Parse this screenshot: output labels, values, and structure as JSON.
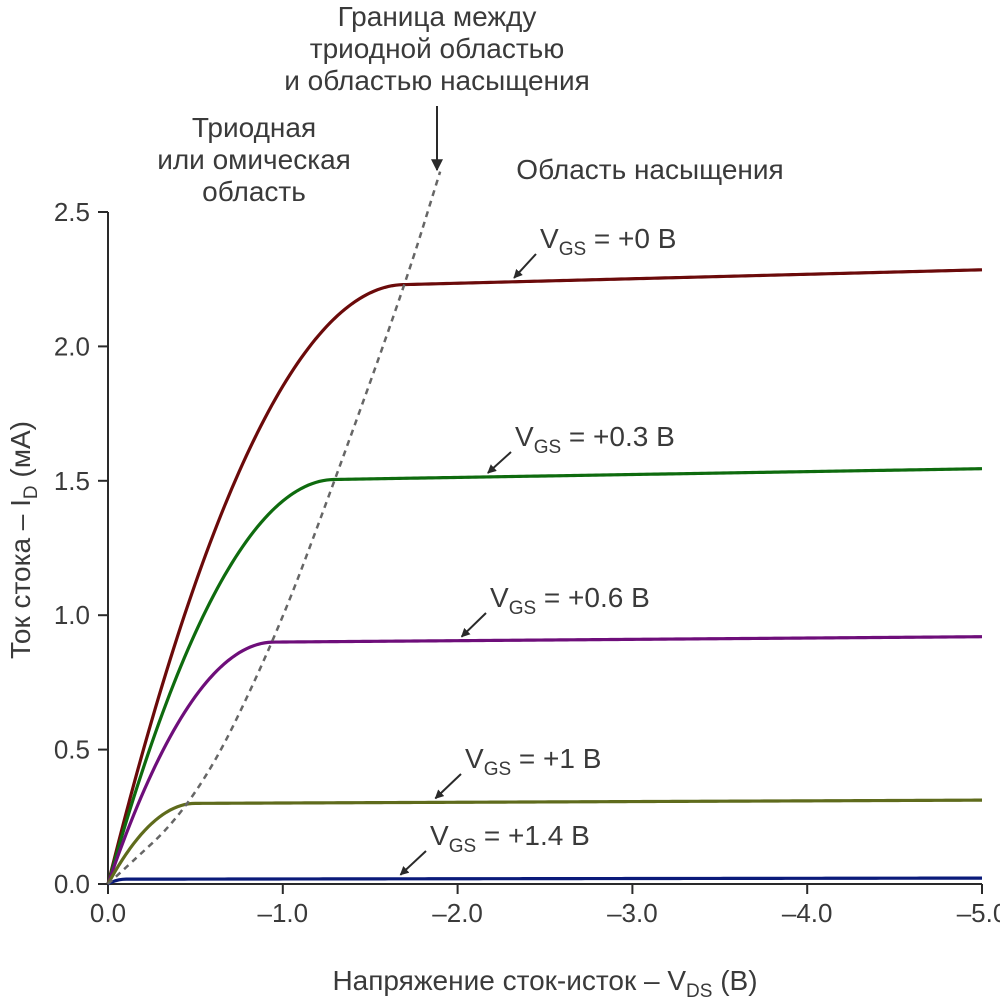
{
  "chart_data": {
    "type": "line",
    "xlabel": {
      "main": "Напряжение сток-исток – V",
      "sub": "DS",
      "unit": " (В)"
    },
    "ylabel": {
      "main": "Ток стока – I",
      "sub": "D",
      "unit": " (мА)"
    },
    "xlim": [
      0,
      -5
    ],
    "ylim": [
      0,
      2.5
    ],
    "x_ticks": [
      0,
      -1,
      -2,
      -3,
      -4,
      -5
    ],
    "x_tick_labels": [
      "0.0",
      "–1.0",
      "–2.0",
      "–3.0",
      "–4.0",
      "–5.0"
    ],
    "y_ticks": [
      0,
      0.5,
      1,
      1.5,
      2,
      2.5
    ],
    "y_tick_labels": [
      "0.0",
      "0.5",
      "1.0",
      "1.5",
      "2.0",
      "2.5"
    ],
    "grid": false,
    "series": [
      {
        "name": "V_GS = +0 В",
        "label_main": "V",
        "label_sub": "GS",
        "label_rest": " = +0 В",
        "color": "#6b0a0a",
        "vp": 1.7,
        "isat": 2.23,
        "iend": 2.285
      },
      {
        "name": "V_GS = +0.3 В",
        "label_main": "V",
        "label_sub": "GS",
        "label_rest": " = +0.3 В",
        "color": "#0e6b0e",
        "vp": 1.3,
        "isat": 1.505,
        "iend": 1.545
      },
      {
        "name": "V_GS = +0.6 В",
        "label_main": "V",
        "label_sub": "GS",
        "label_rest": " = +0.6 В",
        "color": "#6e0e7a",
        "vp": 0.95,
        "isat": 0.9,
        "iend": 0.92
      },
      {
        "name": "V_GS = +1 В",
        "label_main": "V",
        "label_sub": "GS",
        "label_rest": " = +1 В",
        "color": "#5f6b1c",
        "vp": 0.5,
        "isat": 0.3,
        "iend": 0.312
      },
      {
        "name": "V_GS = +1.4 В",
        "label_main": "V",
        "label_sub": "GS",
        "label_rest": " = +1.4 В",
        "color": "#0a1a7a",
        "vp": 0.1,
        "isat": 0.018,
        "iend": 0.022
      }
    ],
    "boundary": {
      "color": "#666666",
      "x": [
        0,
        -0.5,
        -0.95,
        -1.3,
        -1.7,
        -1.9
      ],
      "y": [
        0,
        0.3,
        0.9,
        1.505,
        2.23,
        2.65
      ]
    },
    "annotations": {
      "boundary_label": [
        "Граница между",
        "триодной областью",
        "и областью насыщения"
      ],
      "triode_label": [
        "Триодная",
        "или омическая",
        "область"
      ],
      "saturation_label": "Область насыщения"
    }
  }
}
